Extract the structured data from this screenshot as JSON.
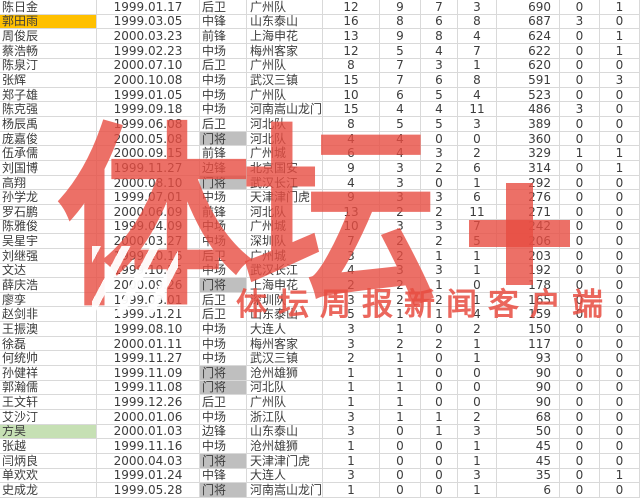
{
  "colors": {
    "highlight_orange": "#FFC000",
    "highlight_green": "#C6E0B4",
    "highlight_gray": "#BFBFBF",
    "gridline": "#D9D9D9",
    "text": "#3C3C3C",
    "watermark_red": "#E74C41"
  },
  "watermark": {
    "logo_text": "体坛",
    "plus_symbol": "+",
    "slogan": "体坛周报新闻客户端"
  },
  "table": {
    "columns": [
      "name",
      "birthdate",
      "position",
      "club",
      "stat1",
      "stat2",
      "stat3",
      "stat4",
      "minutes",
      "stat6",
      "stat7"
    ],
    "rows": [
      {
        "name": "陈日金",
        "birthdate": "1999.01.17",
        "position": "后卫",
        "club": "广州队",
        "stats": [
          12,
          9,
          7,
          3,
          690,
          0,
          1
        ],
        "name_fill": null,
        "position_fill": null
      },
      {
        "name": "郭田雨",
        "birthdate": "1999.03.05",
        "position": "中锋",
        "club": "山东泰山",
        "stats": [
          16,
          8,
          6,
          8,
          687,
          3,
          0
        ],
        "name_fill": "orange",
        "position_fill": null
      },
      {
        "name": "周俊辰",
        "birthdate": "2000.03.23",
        "position": "前锋",
        "club": "上海申花",
        "stats": [
          13,
          9,
          8,
          4,
          624,
          0,
          1
        ],
        "name_fill": null,
        "position_fill": null
      },
      {
        "name": "蔡浩畅",
        "birthdate": "1999.02.23",
        "position": "中场",
        "club": "梅州客家",
        "stats": [
          12,
          5,
          4,
          7,
          622,
          0,
          1
        ],
        "name_fill": null,
        "position_fill": null
      },
      {
        "name": "陈泉汀",
        "birthdate": "2000.07.10",
        "position": "后卫",
        "club": "广州队",
        "stats": [
          8,
          7,
          3,
          1,
          620,
          0,
          0
        ],
        "name_fill": null,
        "position_fill": null
      },
      {
        "name": "张辉",
        "birthdate": "2000.10.08",
        "position": "中场",
        "club": "武汉三镇",
        "stats": [
          15,
          7,
          6,
          8,
          591,
          0,
          3
        ],
        "name_fill": null,
        "position_fill": null
      },
      {
        "name": "郑子雄",
        "birthdate": "1999.01.05",
        "position": "中场",
        "club": "广州队",
        "stats": [
          10,
          6,
          5,
          4,
          523,
          0,
          0
        ],
        "name_fill": null,
        "position_fill": null
      },
      {
        "name": "陈克强",
        "birthdate": "1999.09.18",
        "position": "中场",
        "club": "河南嵩山龙门",
        "stats": [
          15,
          4,
          4,
          11,
          486,
          3,
          0
        ],
        "name_fill": null,
        "position_fill": null
      },
      {
        "name": "杨辰禹",
        "birthdate": "1999.06.08",
        "position": "后卫",
        "club": "河北队",
        "stats": [
          8,
          5,
          5,
          3,
          389,
          0,
          0
        ],
        "name_fill": null,
        "position_fill": null
      },
      {
        "name": "庞嘉俊",
        "birthdate": "2000.05.08",
        "position": "门将",
        "club": "河北队",
        "stats": [
          4,
          4,
          0,
          0,
          360,
          0,
          0
        ],
        "name_fill": null,
        "position_fill": "gray"
      },
      {
        "name": "伍承儒",
        "birthdate": "2000.09.15",
        "position": "前锋",
        "club": "广州城",
        "stats": [
          6,
          4,
          3,
          2,
          329,
          1,
          1
        ],
        "name_fill": null,
        "position_fill": null
      },
      {
        "name": "刘国博",
        "birthdate": "1999.11.27",
        "position": "边锋",
        "club": "北京国安",
        "stats": [
          9,
          3,
          2,
          6,
          314,
          0,
          1
        ],
        "name_fill": null,
        "position_fill": null
      },
      {
        "name": "高翔",
        "birthdate": "2000.08.10",
        "position": "门将",
        "club": "武汉长江",
        "stats": [
          4,
          3,
          0,
          1,
          292,
          0,
          0
        ],
        "name_fill": null,
        "position_fill": "gray"
      },
      {
        "name": "孙学龙",
        "birthdate": "1999.07.01",
        "position": "中场",
        "club": "天津津门虎",
        "stats": [
          9,
          3,
          3,
          6,
          276,
          0,
          0
        ],
        "name_fill": null,
        "position_fill": null
      },
      {
        "name": "罗石鹏",
        "birthdate": "2000.06.09",
        "position": "前锋",
        "club": "河北队",
        "stats": [
          13,
          2,
          2,
          11,
          271,
          0,
          0
        ],
        "name_fill": null,
        "position_fill": null
      },
      {
        "name": "陈雅俊",
        "birthdate": "1999.04.09",
        "position": "中场",
        "club": "广州城",
        "stats": [
          10,
          3,
          3,
          7,
          242,
          0,
          0
        ],
        "name_fill": null,
        "position_fill": null
      },
      {
        "name": "吴星宇",
        "birthdate": "2000.03.27",
        "position": "中场",
        "club": "深圳队",
        "stats": [
          7,
          2,
          2,
          5,
          206,
          0,
          0
        ],
        "name_fill": null,
        "position_fill": null
      },
      {
        "name": "刘继强",
        "birthdate": "1999.10.16",
        "position": "后卫",
        "club": "广州城",
        "stats": [
          3,
          2,
          1,
          1,
          203,
          0,
          0
        ],
        "name_fill": null,
        "position_fill": null
      },
      {
        "name": "文达",
        "birthdate": "1999.10.25",
        "position": "中场",
        "club": "武汉长江",
        "stats": [
          4,
          3,
          3,
          1,
          192,
          0,
          0
        ],
        "name_fill": null,
        "position_fill": null
      },
      {
        "name": "薛庆浩",
        "birthdate": "2000.09.26",
        "position": "门将",
        "club": "上海申花",
        "stats": [
          2,
          2,
          1,
          0,
          178,
          0,
          0
        ],
        "name_fill": null,
        "position_fill": "gray"
      },
      {
        "name": "廖孪",
        "birthdate": "1999.03.01",
        "position": "后卫",
        "club": "深圳队",
        "stats": [
          3,
          2,
          2,
          1,
          165,
          0,
          0
        ],
        "name_fill": null,
        "position_fill": null
      },
      {
        "name": "赵剑非",
        "birthdate": "1999.01.21",
        "position": "后卫",
        "club": "山东泰山",
        "stats": [
          5,
          1,
          1,
          4,
          159,
          0,
          0
        ],
        "name_fill": null,
        "position_fill": null
      },
      {
        "name": "王振澳",
        "birthdate": "1999.08.10",
        "position": "中场",
        "club": "大连人",
        "stats": [
          3,
          1,
          0,
          2,
          150,
          0,
          0
        ],
        "name_fill": null,
        "position_fill": null
      },
      {
        "name": "徐磊",
        "birthdate": "2000.01.11",
        "position": "中场",
        "club": "梅州客家",
        "stats": [
          3,
          2,
          2,
          1,
          117,
          0,
          0
        ],
        "name_fill": null,
        "position_fill": null
      },
      {
        "name": "何统帅",
        "birthdate": "1999.11.27",
        "position": "中场",
        "club": "武汉三镇",
        "stats": [
          2,
          1,
          0,
          1,
          93,
          0,
          0
        ],
        "name_fill": null,
        "position_fill": null
      },
      {
        "name": "孙健祥",
        "birthdate": "1999.11.09",
        "position": "门将",
        "club": "沧州雄狮",
        "stats": [
          1,
          1,
          0,
          0,
          90,
          0,
          0
        ],
        "name_fill": null,
        "position_fill": "gray"
      },
      {
        "name": "郭瀚儒",
        "birthdate": "1999.11.08",
        "position": "门将",
        "club": "河北队",
        "stats": [
          1,
          1,
          0,
          0,
          90,
          0,
          0
        ],
        "name_fill": null,
        "position_fill": "gray"
      },
      {
        "name": "王文轩",
        "birthdate": "1999.12.26",
        "position": "后卫",
        "club": "广州队",
        "stats": [
          1,
          1,
          0,
          0,
          90,
          0,
          0
        ],
        "name_fill": null,
        "position_fill": null
      },
      {
        "name": "艾沙汀",
        "birthdate": "2000.01.06",
        "position": "中场",
        "club": "浙江队",
        "stats": [
          3,
          1,
          1,
          2,
          68,
          0,
          0
        ],
        "name_fill": null,
        "position_fill": null
      },
      {
        "name": "方昊",
        "birthdate": "2000.01.03",
        "position": "边锋",
        "club": "山东泰山",
        "stats": [
          3,
          0,
          1,
          3,
          50,
          0,
          0
        ],
        "name_fill": "green",
        "position_fill": null
      },
      {
        "name": "张越",
        "birthdate": "1999.11.16",
        "position": "中场",
        "club": "沧州雄狮",
        "stats": [
          1,
          0,
          0,
          1,
          45,
          0,
          0
        ],
        "name_fill": null,
        "position_fill": null
      },
      {
        "name": "闫炳良",
        "birthdate": "2000.04.03",
        "position": "门将",
        "club": "天津津门虎",
        "stats": [
          1,
          0,
          0,
          1,
          45,
          0,
          0
        ],
        "name_fill": null,
        "position_fill": "gray"
      },
      {
        "name": "单欢欢",
        "birthdate": "1999.01.24",
        "position": "中锋",
        "club": "大连人",
        "stats": [
          3,
          0,
          0,
          3,
          35,
          0,
          1
        ],
        "name_fill": null,
        "position_fill": null
      },
      {
        "name": "史成龙",
        "birthdate": "1999.05.28",
        "position": "门将",
        "club": "河南嵩山龙门",
        "stats": [
          1,
          0,
          0,
          1,
          6,
          0,
          0
        ],
        "name_fill": null,
        "position_fill": "gray"
      }
    ]
  }
}
